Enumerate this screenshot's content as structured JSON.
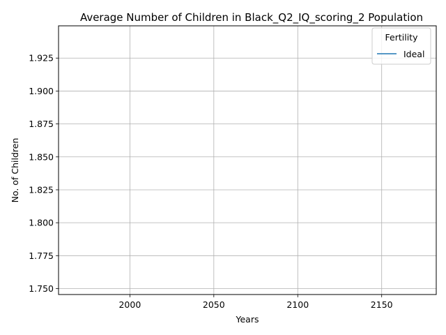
{
  "chart_data": {
    "type": "line",
    "title": "Average Number of Children in Black_Q2_IQ_scoring_2 Population",
    "xlabel": "Years",
    "ylabel": "No. of Children",
    "xlim": [
      1957.5,
      2182.5
    ],
    "ylim": [
      1.7455,
      1.9495
    ],
    "x_ticks": [
      2000,
      2050,
      2100,
      2150
    ],
    "x_tick_labels": [
      "2000",
      "2050",
      "2100",
      "2150"
    ],
    "y_ticks": [
      1.75,
      1.775,
      1.8,
      1.825,
      1.85,
      1.875,
      1.9,
      1.925
    ],
    "y_tick_labels": [
      "1.750",
      "1.775",
      "1.800",
      "1.825",
      "1.850",
      "1.875",
      "1.900",
      "1.925"
    ],
    "grid": true,
    "legend": {
      "title": "Fertility",
      "placement": "top-right"
    },
    "series": [
      {
        "name": "Ideal",
        "color": "#1f77b4",
        "x": [],
        "y": []
      }
    ]
  }
}
